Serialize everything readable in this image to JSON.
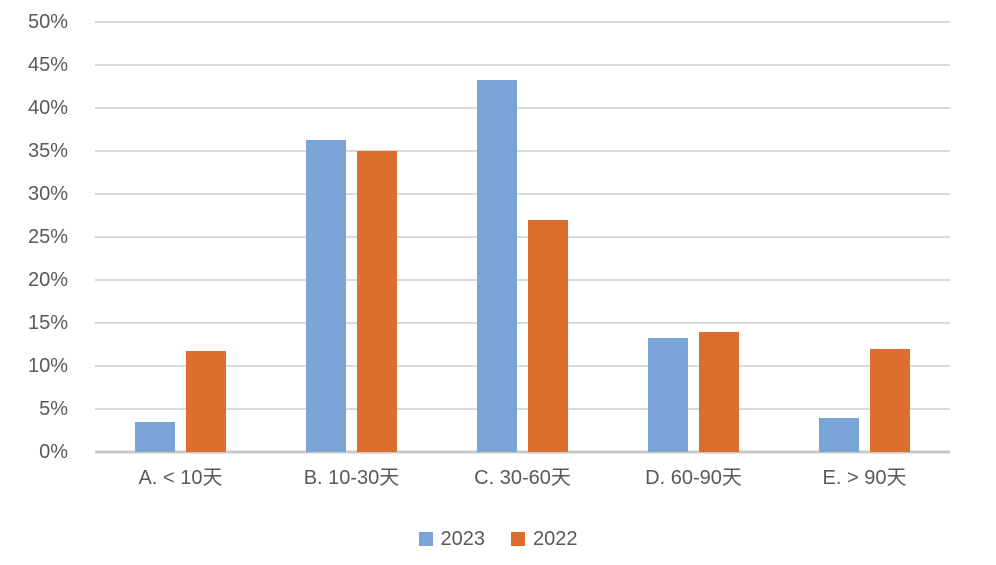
{
  "chart_data": {
    "type": "bar",
    "title": "",
    "xlabel": "",
    "ylabel": "",
    "categories": [
      "A. < 10天",
      "B. 10-30天",
      "C. 30-60天",
      "D. 60-90天",
      "E. > 90天"
    ],
    "series": [
      {
        "name": "2023",
        "color": "#7aa4d6",
        "values": [
          3.5,
          36.3,
          43.3,
          13.2,
          4.0
        ]
      },
      {
        "name": "2022",
        "color": "#de6e2c",
        "values": [
          11.7,
          35.0,
          27.0,
          14.0,
          12.0
        ]
      }
    ],
    "ylim": [
      0,
      50
    ],
    "ytick_step": 5,
    "ytick_labels": [
      "0%",
      "5%",
      "10%",
      "15%",
      "20%",
      "25%",
      "30%",
      "35%",
      "40%",
      "45%",
      "50%"
    ],
    "grid": true,
    "legend_position": "bottom"
  },
  "style": {
    "background": "#ffffff",
    "text_color": "#595959",
    "gridline_color": "#d9d9d9",
    "axis_line_color": "#c9c9c9"
  }
}
